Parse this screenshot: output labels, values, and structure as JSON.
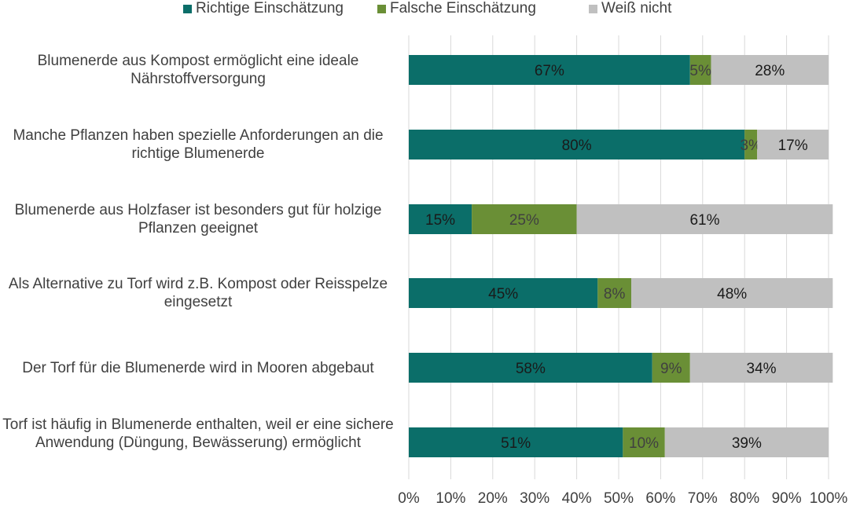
{
  "chart_data": {
    "type": "bar",
    "orientation": "horizontal",
    "stacked": true,
    "title": "",
    "xlabel": "",
    "ylabel": "",
    "xlim": [
      0,
      100
    ],
    "x_ticks": [
      "0%",
      "10%",
      "20%",
      "30%",
      "40%",
      "50%",
      "60%",
      "70%",
      "80%",
      "90%",
      "100%"
    ],
    "grid": "vertical",
    "legend_position": "top",
    "categories": [
      "Blumenerde aus Kompost ermöglicht eine ideale Nährstoffversorgung",
      "Manche Pflanzen haben spezielle Anforderungen an die richtige Blumenerde",
      "Blumenerde aus Holzfaser ist besonders gut für holzige Pflanzen geeignet",
      "Als Alternative zu Torf wird z.B. Kompost oder Reisspelze eingesetzt",
      "Der Torf für die Blumenerde wird in Mooren abgebaut",
      "Torf ist häufig in Blumenerde enthalten, weil er eine sichere Anwendung (Düngung, Bewässerung) ermöglicht"
    ],
    "series": [
      {
        "name": "Richtige Einschätzung",
        "color": "#0b6e69",
        "values": [
          67,
          80,
          15,
          45,
          58,
          51
        ],
        "labels": [
          "67%",
          "80%",
          "15%",
          "45%",
          "58%",
          "51%"
        ]
      },
      {
        "name": "Falsche Einschätzung",
        "color": "#6a8f36",
        "values": [
          5,
          3,
          25,
          8,
          9,
          10
        ],
        "labels": [
          "5%",
          "3%",
          "25%",
          "8%",
          "9%",
          "10%"
        ]
      },
      {
        "name": "Weiß nicht",
        "color": "#c0c0c0",
        "values": [
          28,
          17,
          61,
          48,
          34,
          39
        ],
        "labels": [
          "28%",
          "17%",
          "61%",
          "48%",
          "34%",
          "39%"
        ]
      }
    ]
  }
}
